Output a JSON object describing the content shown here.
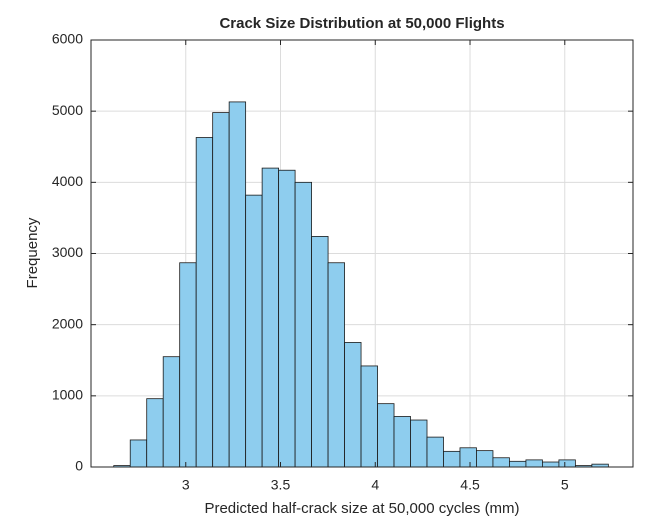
{
  "chart_data": {
    "type": "histogram",
    "title": "Crack Size Distribution at 50,000 Flights",
    "xlabel": "Predicted half-crack size at 50,000 cycles (mm)",
    "ylabel": "Frequency",
    "bins": [
      2.62,
      2.707,
      2.794,
      2.881,
      2.968,
      3.055,
      3.142,
      3.229,
      3.316,
      3.403,
      3.49,
      3.577,
      3.664,
      3.751,
      3.838,
      3.925,
      4.012,
      4.099,
      4.186,
      4.273,
      4.36,
      4.447,
      4.534,
      4.621,
      4.708,
      4.795,
      4.882,
      4.969,
      5.056,
      5.143,
      5.23
    ],
    "counts": [
      20,
      380,
      960,
      1550,
      2870,
      4630,
      4980,
      5130,
      3820,
      4200,
      4170,
      4000,
      3240,
      2870,
      1750,
      1420,
      890,
      710,
      660,
      420,
      220,
      270,
      230,
      130,
      80,
      100,
      70,
      100,
      20,
      40
    ],
    "color": "#8ecdee",
    "xlim": [
      2.5,
      5.36
    ],
    "xticks": [
      3,
      3.5,
      4,
      4.5,
      5
    ],
    "ylim": [
      0,
      6000
    ],
    "yticks": [
      0,
      1000,
      2000,
      3000,
      4000,
      5000,
      6000
    ],
    "grid": true
  }
}
